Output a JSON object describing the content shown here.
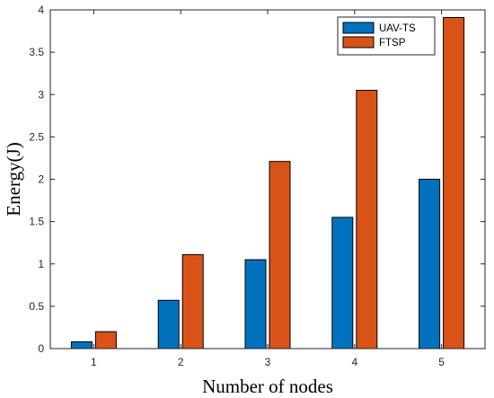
{
  "chart_data": {
    "type": "bar",
    "categories": [
      "1",
      "2",
      "3",
      "4",
      "5"
    ],
    "series": [
      {
        "name": "UAV-TS",
        "values": [
          0.08,
          0.57,
          1.05,
          1.55,
          2.0
        ],
        "color": "#0072BD"
      },
      {
        "name": "FTSP",
        "values": [
          0.2,
          1.11,
          2.21,
          3.05,
          3.91
        ],
        "color": "#D95319"
      }
    ],
    "title": "",
    "xlabel": "Number of nodes",
    "ylabel": "Energy(J)",
    "ylim": [
      0,
      4
    ],
    "yticks": [
      "0",
      "0.5",
      "1",
      "1.5",
      "2",
      "2.5",
      "3",
      "3.5",
      "4"
    ],
    "grid": false,
    "legend_position": "top-right"
  }
}
